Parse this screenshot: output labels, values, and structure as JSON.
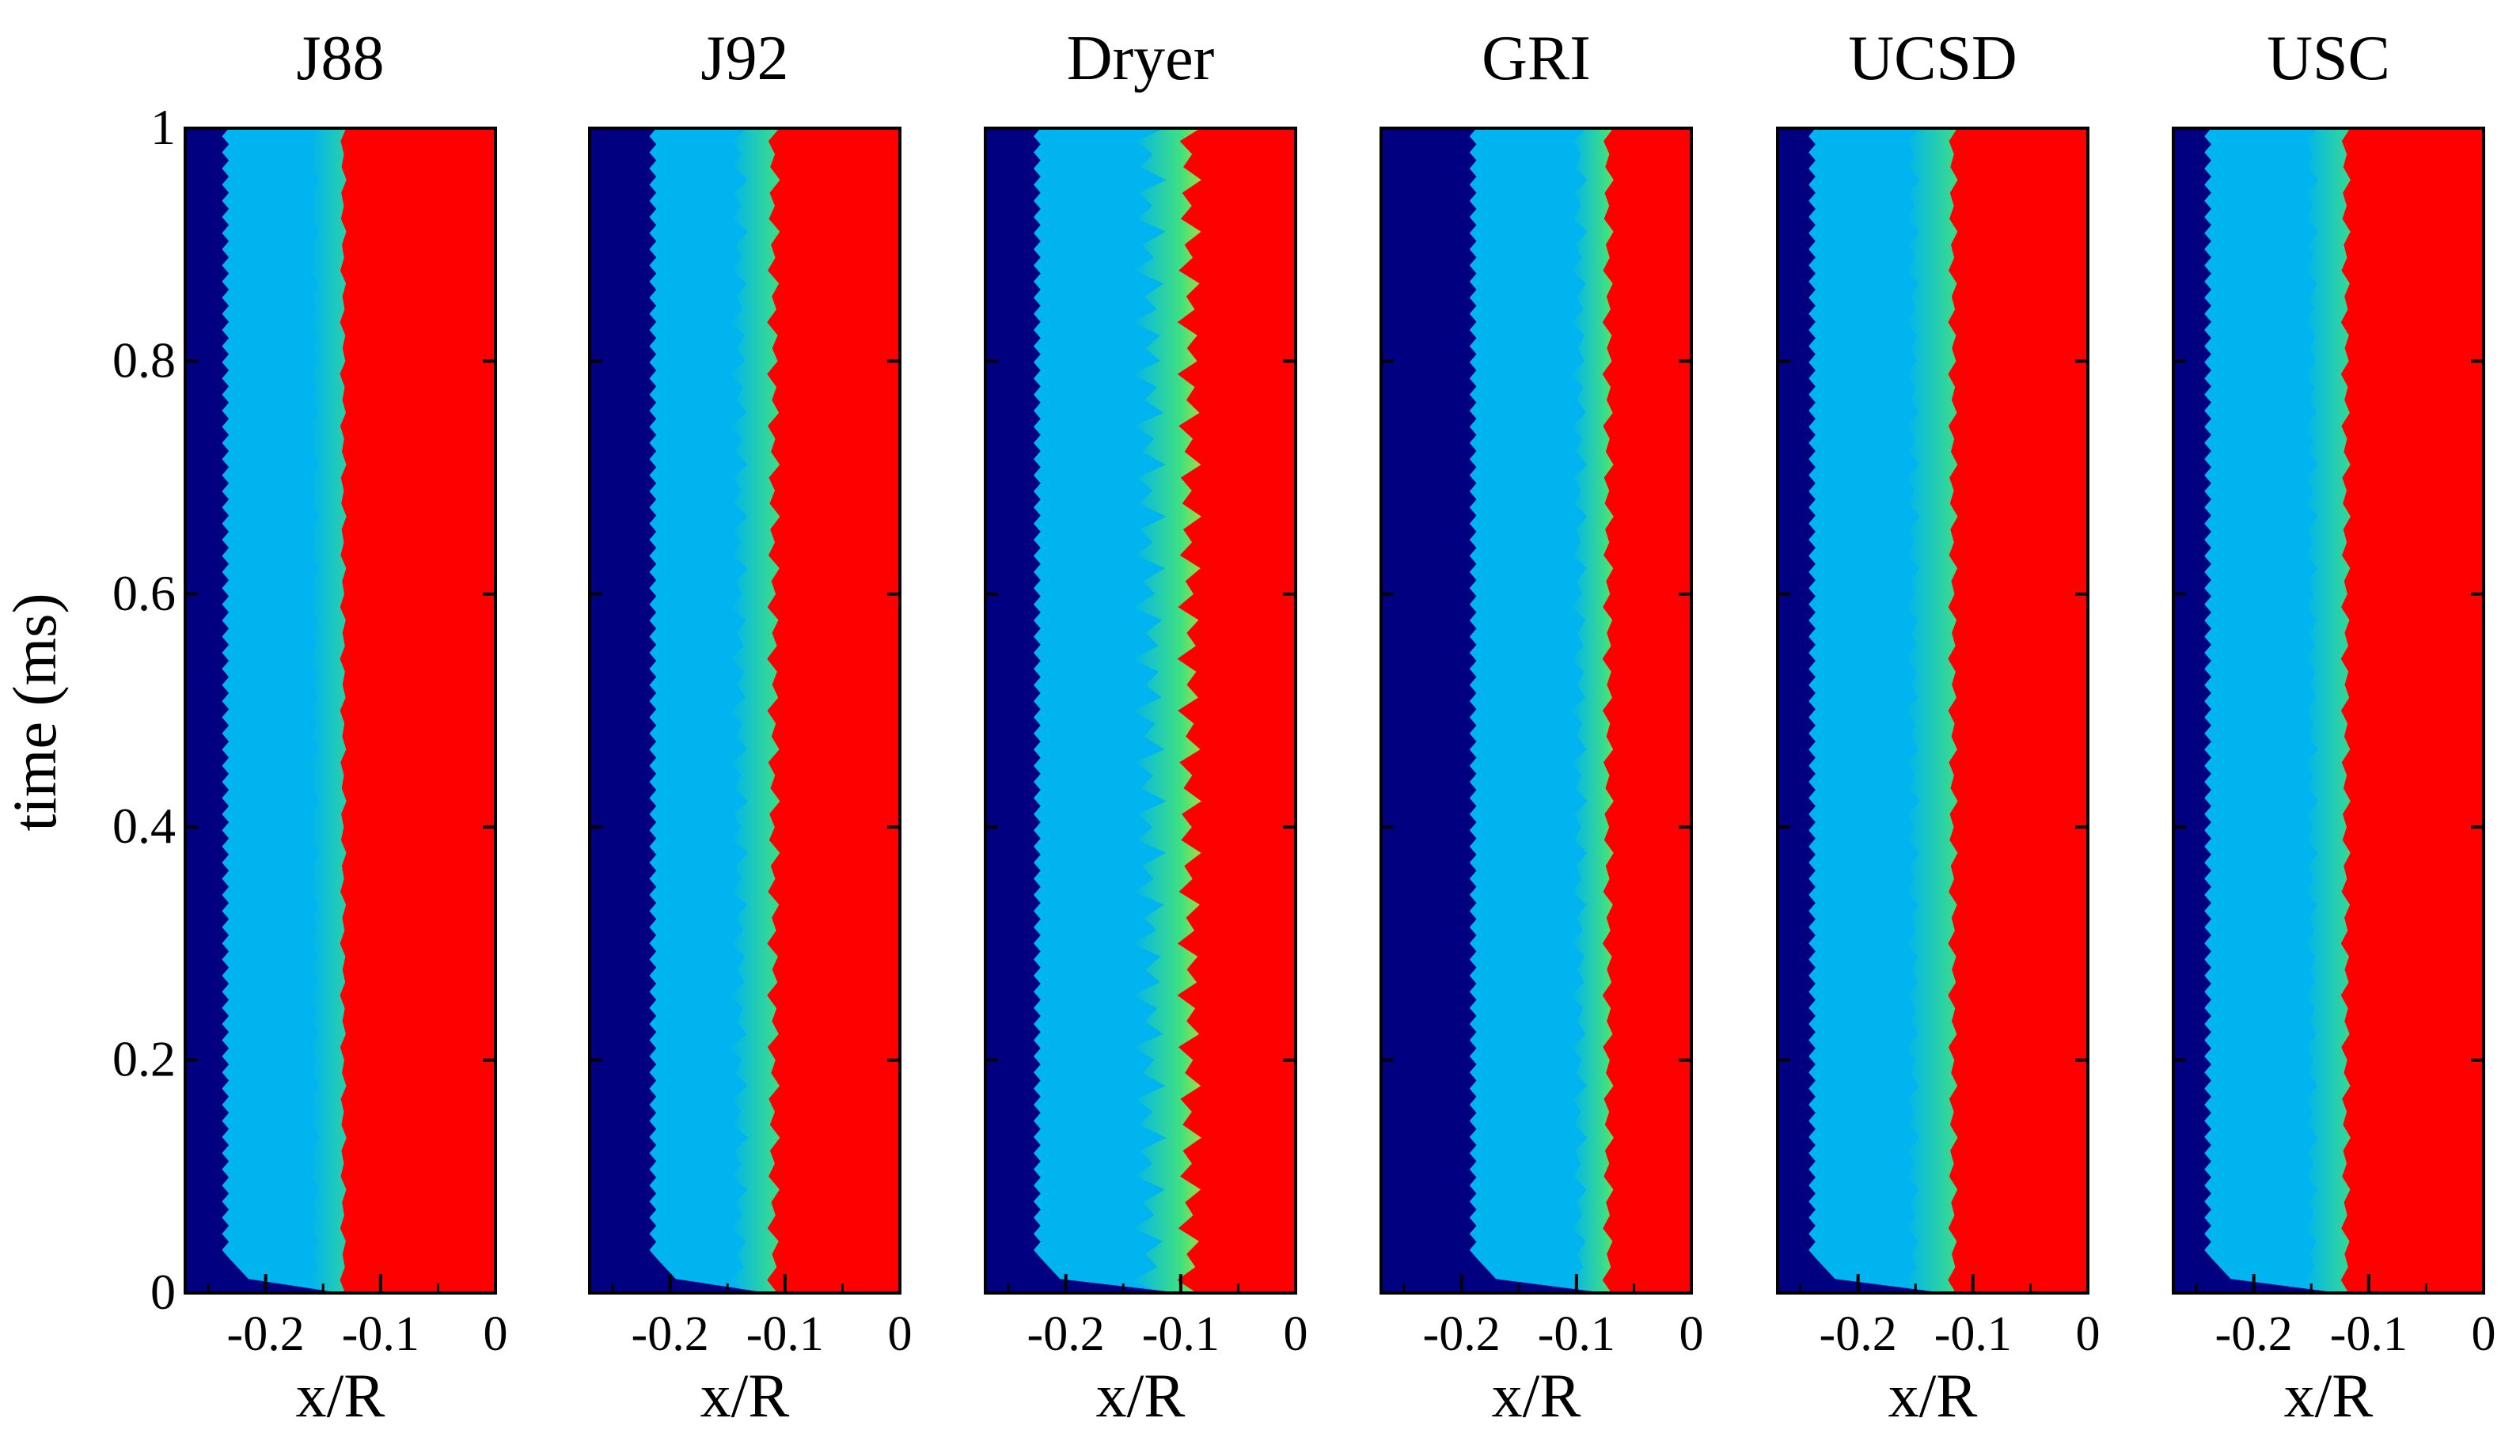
{
  "figure": {
    "ylabel": "time (ms)",
    "yticks": [
      "0",
      "0.2",
      "0.4",
      "0.6",
      "0.8",
      "1"
    ]
  },
  "colors": {
    "unburnt": "#000080",
    "mid": "#00b4f0",
    "burnt": "#ff0000",
    "yellow": "#ffe000",
    "green": "#40e080",
    "frame": "#000000"
  },
  "chart_data": [
    {
      "type": "heatmap",
      "title": "J88",
      "xlabel": "x/R",
      "xticks": [
        "-0.2",
        "-0.1",
        "0"
      ],
      "xlim": [
        -0.27,
        0
      ],
      "ylim": [
        0,
        1
      ],
      "ytick_values": [
        0,
        0.2,
        0.4,
        0.6,
        0.8,
        1
      ],
      "xtick_values": [
        -0.2,
        -0.1,
        0
      ],
      "dark_blue_boundary_x": -0.235,
      "front_x": -0.145,
      "front_width": 0.025,
      "oscillation_amplitude": 0.004
    },
    {
      "type": "heatmap",
      "title": "J92",
      "xlabel": "x/R",
      "xticks": [
        "-0.2",
        "-0.1",
        "0"
      ],
      "xlim": [
        -0.27,
        0
      ],
      "ylim": [
        0,
        1
      ],
      "ytick_values": [
        0,
        0.2,
        0.4,
        0.6,
        0.8,
        1
      ],
      "xtick_values": [
        -0.2,
        -0.1,
        0
      ],
      "dark_blue_boundary_x": -0.215,
      "front_x": -0.125,
      "front_width": 0.03,
      "oscillation_amplitude": 0.008
    },
    {
      "type": "heatmap",
      "title": "Dryer",
      "xlabel": "x/R",
      "xticks": [
        "-0.2",
        "-0.1",
        "0"
      ],
      "xlim": [
        -0.27,
        0
      ],
      "ylim": [
        0,
        1
      ],
      "ytick_values": [
        0,
        0.2,
        0.4,
        0.6,
        0.8,
        1
      ],
      "xtick_values": [
        -0.2,
        -0.1,
        0
      ],
      "dark_blue_boundary_x": -0.225,
      "front_x": -0.11,
      "front_width": 0.035,
      "oscillation_amplitude": 0.015
    },
    {
      "type": "heatmap",
      "title": "GRI",
      "xlabel": "x/R",
      "xticks": [
        "-0.2",
        "-0.1",
        "0"
      ],
      "xlim": [
        -0.27,
        0
      ],
      "ylim": [
        0,
        1
      ],
      "ytick_values": [
        0,
        0.2,
        0.4,
        0.6,
        0.8,
        1
      ],
      "xtick_values": [
        -0.2,
        -0.1,
        0
      ],
      "dark_blue_boundary_x": -0.19,
      "front_x": -0.085,
      "front_width": 0.025,
      "oscillation_amplitude": 0.007
    },
    {
      "type": "heatmap",
      "title": "UCSD",
      "xlabel": "x/R",
      "xticks": [
        "-0.2",
        "-0.1",
        "0"
      ],
      "xlim": [
        -0.27,
        0
      ],
      "ylim": [
        0,
        1
      ],
      "ytick_values": [
        0,
        0.2,
        0.4,
        0.6,
        0.8,
        1
      ],
      "xtick_values": [
        -0.2,
        -0.1,
        0
      ],
      "dark_blue_boundary_x": -0.24,
      "front_x": -0.135,
      "front_width": 0.035,
      "oscillation_amplitude": 0.006
    },
    {
      "type": "heatmap",
      "title": "USC",
      "xlabel": "x/R",
      "xticks": [
        "-0.2",
        "-0.1",
        "0"
      ],
      "xlim": [
        -0.27,
        0
      ],
      "ylim": [
        0,
        1
      ],
      "ytick_values": [
        0,
        0.2,
        0.4,
        0.6,
        0.8,
        1
      ],
      "xtick_values": [
        -0.2,
        -0.1,
        0
      ],
      "dark_blue_boundary_x": -0.24,
      "front_x": -0.135,
      "front_width": 0.03,
      "oscillation_amplitude": 0.006
    }
  ]
}
